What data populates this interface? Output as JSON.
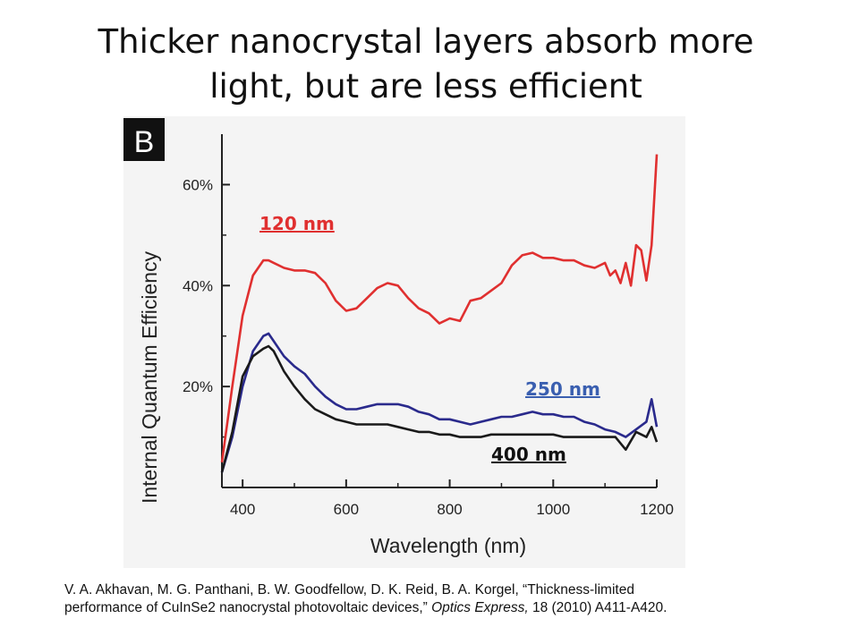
{
  "slide": {
    "title_line1": "Thicker nanocrystal layers absorb more",
    "title_line2": "light, but are less efficient"
  },
  "figure": {
    "panel_label": "B"
  },
  "citation": {
    "line1": "V. A. Akhavan, M. G. Panthani, B. W. Goodfellow, D. K. Reid, B. A. Korgel, “Thickness-limited",
    "line2_pre": "performance of CuInSe2 nanocrystal photovoltaic devices,” ",
    "journal": "Optics Express,",
    "line2_post": " 18 (2010) A411-A420."
  },
  "chart_data": {
    "type": "line",
    "title": "",
    "xlabel": "Wavelength (nm)",
    "ylabel": "Internal Quantum Efficiency",
    "xlim": [
      360,
      1200
    ],
    "ylim": [
      0,
      0.7
    ],
    "xticks": [
      400,
      600,
      800,
      1000,
      1200
    ],
    "xtick_labels": [
      "400",
      "600",
      "800",
      "1000",
      "1200"
    ],
    "yticks": [
      0.2,
      0.4,
      0.6
    ],
    "ytick_labels": [
      "20%",
      "40%",
      "60%"
    ],
    "grid": false,
    "series": [
      {
        "name": "120 nm",
        "color": "#e03030",
        "label_color": "#e03030",
        "x": [
          360,
          380,
          400,
          420,
          440,
          450,
          460,
          480,
          500,
          520,
          540,
          560,
          580,
          600,
          620,
          640,
          660,
          680,
          700,
          720,
          740,
          760,
          780,
          800,
          820,
          840,
          860,
          880,
          900,
          920,
          940,
          960,
          980,
          1000,
          1020,
          1040,
          1060,
          1080,
          1100,
          1110,
          1120,
          1130,
          1140,
          1150,
          1160,
          1170,
          1180,
          1190,
          1200
        ],
        "y": [
          0.05,
          0.2,
          0.34,
          0.42,
          0.45,
          0.45,
          0.445,
          0.435,
          0.43,
          0.43,
          0.425,
          0.405,
          0.37,
          0.35,
          0.355,
          0.375,
          0.395,
          0.405,
          0.4,
          0.375,
          0.355,
          0.345,
          0.325,
          0.335,
          0.33,
          0.37,
          0.375,
          0.39,
          0.405,
          0.44,
          0.46,
          0.465,
          0.455,
          0.455,
          0.45,
          0.45,
          0.44,
          0.435,
          0.445,
          0.42,
          0.43,
          0.405,
          0.445,
          0.4,
          0.48,
          0.47,
          0.41,
          0.48,
          0.66
        ]
      },
      {
        "name": "250 nm",
        "color": "#2a2a8c",
        "label_color": "#3a5fb0",
        "x": [
          360,
          380,
          400,
          420,
          440,
          450,
          460,
          480,
          500,
          520,
          540,
          560,
          580,
          600,
          620,
          640,
          660,
          680,
          700,
          720,
          740,
          760,
          780,
          800,
          820,
          840,
          860,
          880,
          900,
          920,
          940,
          960,
          980,
          1000,
          1020,
          1040,
          1060,
          1080,
          1100,
          1120,
          1140,
          1160,
          1180,
          1190,
          1200
        ],
        "y": [
          0.03,
          0.1,
          0.2,
          0.27,
          0.3,
          0.305,
          0.29,
          0.26,
          0.24,
          0.225,
          0.2,
          0.18,
          0.165,
          0.155,
          0.155,
          0.16,
          0.165,
          0.165,
          0.165,
          0.16,
          0.15,
          0.145,
          0.135,
          0.135,
          0.13,
          0.125,
          0.13,
          0.135,
          0.14,
          0.14,
          0.145,
          0.15,
          0.145,
          0.145,
          0.14,
          0.14,
          0.13,
          0.125,
          0.115,
          0.11,
          0.1,
          0.115,
          0.13,
          0.175,
          0.12
        ]
      },
      {
        "name": "400 nm",
        "color": "#1a1a1a",
        "label_color": "#111111",
        "x": [
          360,
          380,
          400,
          420,
          440,
          450,
          460,
          480,
          500,
          520,
          540,
          560,
          580,
          600,
          620,
          640,
          660,
          680,
          700,
          720,
          740,
          760,
          780,
          800,
          820,
          840,
          860,
          880,
          900,
          920,
          940,
          960,
          980,
          1000,
          1020,
          1040,
          1060,
          1080,
          1100,
          1120,
          1140,
          1160,
          1180,
          1190,
          1200
        ],
        "y": [
          0.03,
          0.11,
          0.22,
          0.26,
          0.275,
          0.28,
          0.27,
          0.23,
          0.2,
          0.175,
          0.155,
          0.145,
          0.135,
          0.13,
          0.125,
          0.125,
          0.125,
          0.125,
          0.12,
          0.115,
          0.11,
          0.11,
          0.105,
          0.105,
          0.1,
          0.1,
          0.1,
          0.105,
          0.105,
          0.105,
          0.105,
          0.105,
          0.105,
          0.105,
          0.1,
          0.1,
          0.1,
          0.1,
          0.1,
          0.1,
          0.075,
          0.11,
          0.1,
          0.12,
          0.09
        ]
      }
    ]
  }
}
